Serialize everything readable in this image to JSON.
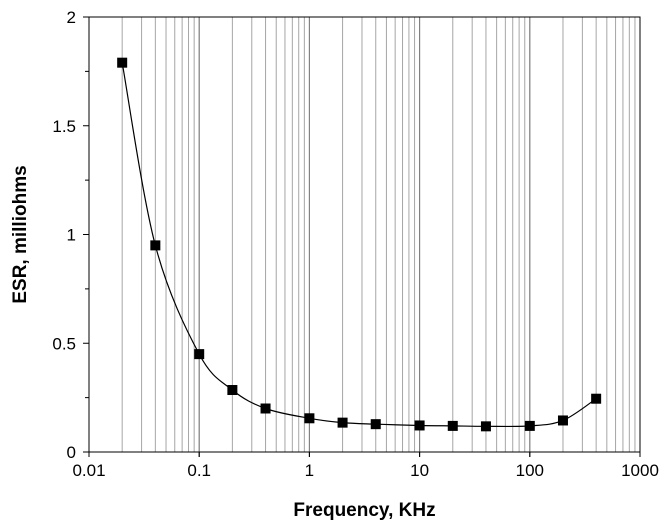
{
  "chart_data": {
    "type": "scatter",
    "title": "",
    "xlabel": "Frequency, KHz",
    "ylabel": "ESR, milliohms",
    "xscale": "log",
    "xlim": [
      0.01,
      1000
    ],
    "ylim": [
      0,
      2
    ],
    "grid": {
      "x_major": true,
      "x_minor": true,
      "y": false
    },
    "x_tick_labels": [
      "0.01",
      "0.1",
      "1",
      "10",
      "100",
      "1000"
    ],
    "y_tick_labels": [
      "0",
      "0.5",
      "1",
      "1.5",
      "2"
    ],
    "series": [
      {
        "marker": "square",
        "line": "smooth",
        "color": "#000000",
        "x": [
          0.02,
          0.04,
          0.1,
          0.2,
          0.4,
          1,
          2,
          4,
          10,
          20,
          40,
          100,
          200,
          400
        ],
        "y": [
          1.79,
          0.95,
          0.45,
          0.285,
          0.2,
          0.155,
          0.135,
          0.128,
          0.122,
          0.12,
          0.118,
          0.12,
          0.145,
          0.245
        ]
      }
    ]
  }
}
